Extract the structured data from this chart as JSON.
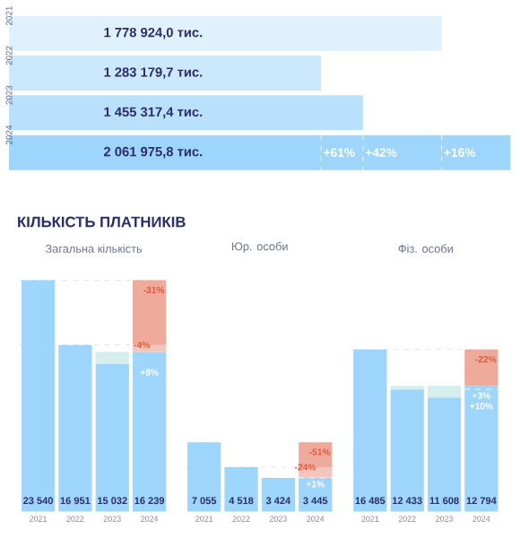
{
  "chart_data": [
    {
      "type": "bar",
      "orientation": "horizontal",
      "categories": [
        "2021",
        "2022",
        "2023",
        "2024"
      ],
      "values": [
        1778924.0,
        1283179.7,
        1455317.4,
        2061975.8
      ],
      "colors": [
        "#dff1fd",
        "#cbe8fc",
        "#b9e1fc",
        "#9dd5fc"
      ],
      "value_labels": [
        "1 778 924,0 тис.",
        "1 283 179,7 тис.",
        "1 455 317,4 тис.",
        "2 061 975,8 тис."
      ],
      "annotations": [
        {
          "text": "+61%",
          "x": 1283179.7,
          "y": "2024"
        },
        {
          "text": "+42%",
          "x": 1455317.4,
          "y": "2024"
        },
        {
          "text": "+16%",
          "x": 1778924.0,
          "y": "2024"
        }
      ]
    },
    {
      "type": "bar",
      "stacked": true,
      "title": "Загальна кількість",
      "categories": [
        "2021",
        "2022",
        "2023",
        "2024"
      ],
      "series": [
        {
          "color": "#9dd5fc",
          "values": [
            23540,
            16951,
            15032,
            16239
          ],
          "value_labels": [
            "23 540",
            "16 951",
            "15 032",
            "16 239"
          ]
        },
        {
          "color": "#d6efee",
          "values": [
            null,
            null,
            1207,
            null
          ]
        },
        {
          "color": "#f3c6bb",
          "values": [
            null,
            null,
            null,
            712
          ]
        },
        {
          "color": "#eeab9b",
          "values": [
            null,
            null,
            null,
            6589
          ]
        }
      ],
      "ref_lines": [
        {
          "axis": "y",
          "value": 23540,
          "color": "#dcdcdc",
          "line_style": "dashed"
        },
        {
          "axis": "y",
          "value": 16951,
          "color": "#dcdcdc",
          "line_style": "dashed"
        }
      ],
      "annotations": [
        "КІЛЬКІСТЬ ПЛАТНИКІВ",
        {
          "text": "-4%",
          "x": "2024",
          "y": 16951
        },
        {
          "text": "-31%",
          "x": "2024",
          "y": 23540
        },
        {
          "text": "+8%",
          "x": "2024",
          "y": 16239
        }
      ]
    },
    {
      "type": "bar",
      "stacked": true,
      "title": "Юр. особи",
      "categories": [
        "2021",
        "2022",
        "2023",
        "2024"
      ],
      "series": [
        {
          "color": "#9dd5fc",
          "values": [
            7055,
            4518,
            3424,
            3445
          ],
          "value_labels": [
            "7 055",
            "4 518",
            "3 424",
            "3 445"
          ]
        },
        {
          "color": "#f3c6bb",
          "values": [
            null,
            null,
            null,
            1073
          ]
        },
        {
          "color": "#eeab9b",
          "values": [
            null,
            null,
            null,
            2537
          ]
        }
      ],
      "ref_lines": [
        {
          "axis": "y",
          "value": 4518,
          "color": "#dcdcdc",
          "line_style": "dashed"
        }
      ],
      "annotations": [
        {
          "text": "-24%",
          "x": "2024",
          "y": 4518
        },
        {
          "text": "-51%",
          "x": "2024",
          "y": 7055
        },
        {
          "text": "+1%",
          "x": "2024",
          "y": 3424
        }
      ]
    },
    {
      "type": "bar",
      "stacked": true,
      "title": "Фіз. особи",
      "categories": [
        "2021",
        "2022",
        "2023",
        "2024"
      ],
      "series": [
        {
          "color": "#9dd5fc",
          "values": [
            16485,
            12433,
            11608,
            12794
          ],
          "value_labels": [
            "16 485",
            "12 433",
            "11 608",
            "12 794"
          ]
        },
        {
          "color": "#d6efee",
          "values": [
            null,
            361,
            1186,
            null
          ]
        },
        {
          "color": "#eeab9b",
          "values": [
            null,
            null,
            null,
            3691
          ]
        }
      ],
      "ref_lines": [
        {
          "axis": "y",
          "value": 16485,
          "color": "#dcdcdc",
          "line_style": "dashed"
        }
      ],
      "annotations": [
        {
          "text": "-22%",
          "x": "2024",
          "y": 16485
        },
        {
          "text": "+3%",
          "x": "2024",
          "y": 12433
        },
        {
          "text": "+10%",
          "x": "2024",
          "y": 12794
        }
      ]
    }
  ]
}
